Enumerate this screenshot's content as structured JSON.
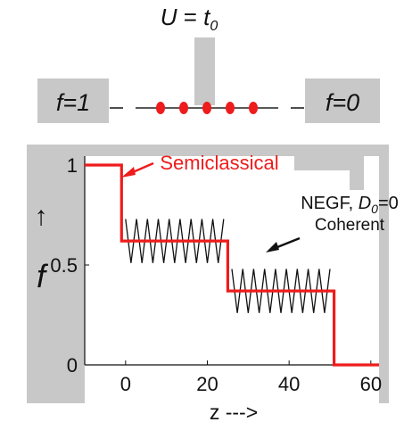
{
  "schematic": {
    "top_label": {
      "lhs": "U",
      "eq": " = ",
      "var": "t",
      "sub": "0"
    },
    "left_contact_label": "f=1",
    "right_contact_label": "f=0",
    "channel_dots": 5,
    "dot_color": "#ee1c1c",
    "contact_color": "#c8c8c8"
  },
  "chart_data": {
    "type": "line",
    "xlabel": "z --->",
    "ylabel_arrow": "↑",
    "ylabel": "f",
    "xlim": [
      -10,
      62
    ],
    "ylim": [
      0,
      1
    ],
    "xticks": [
      0,
      20,
      40,
      60
    ],
    "yticks": [
      0,
      0.5,
      1
    ],
    "ytick_labels": [
      "0",
      "0.5",
      "1"
    ],
    "grid": false,
    "series": [
      {
        "name": "Semiclassical",
        "color": "#ee1c1c",
        "x": [
          -10,
          -1,
          -1,
          25,
          25,
          51,
          51,
          62
        ],
        "y": [
          1,
          1,
          0.62,
          0.62,
          0.37,
          0.37,
          0,
          0
        ]
      },
      {
        "name": "NEGF, D0=0 Coherent",
        "color": "#111111",
        "segments": [
          {
            "x_start": 0,
            "x_end": 24,
            "center": 0.62,
            "amplitude": 0.11,
            "periods": 9
          },
          {
            "x_start": 26,
            "x_end": 50,
            "center": 0.37,
            "amplitude": 0.11,
            "periods": 9
          }
        ]
      }
    ],
    "annotations": [
      {
        "text": "Semiclassical",
        "color": "#ee1c1c"
      },
      {
        "text": "NEGF, ",
        "italic_part": "D",
        "subscript": "0",
        "suffix": "=0",
        "color": "#111111"
      },
      {
        "text": "Coherent",
        "color": "#111111"
      }
    ]
  }
}
